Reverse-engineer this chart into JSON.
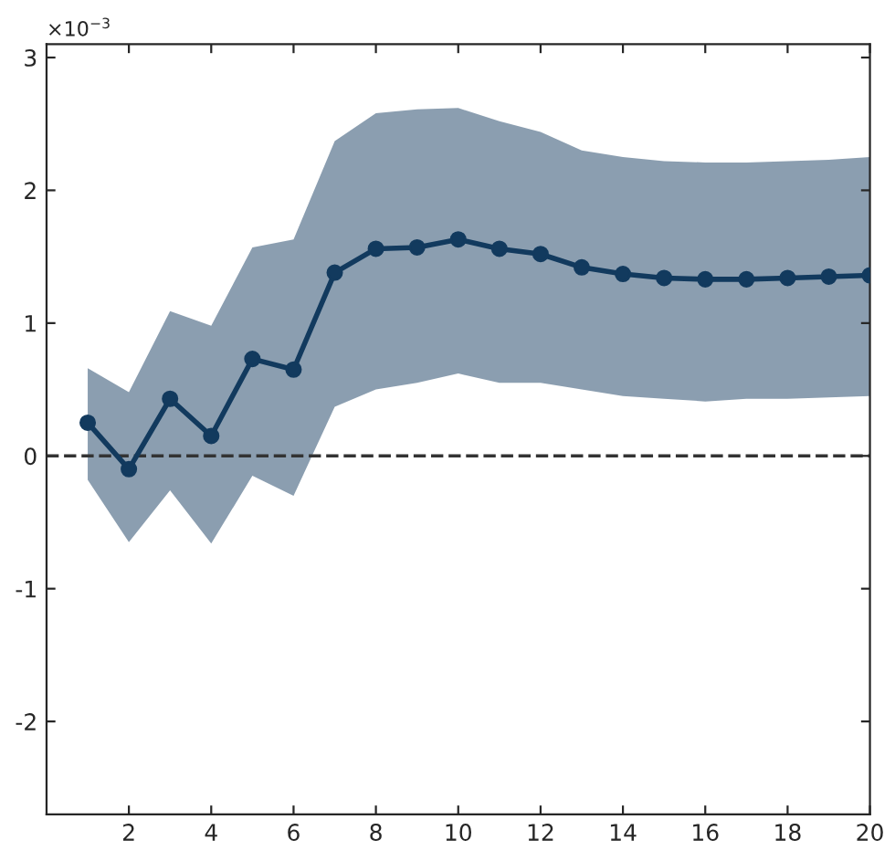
{
  "chart_data": {
    "type": "line",
    "x": [
      1,
      2,
      3,
      4,
      5,
      6,
      7,
      8,
      9,
      10,
      11,
      12,
      13,
      14,
      15,
      16,
      17,
      18,
      19,
      20
    ],
    "series": [
      {
        "color": "#123a5e",
        "values": [
          0.25,
          -0.1,
          0.43,
          0.15,
          0.73,
          0.65,
          1.38,
          1.56,
          1.57,
          1.63,
          1.56,
          1.52,
          1.42,
          1.37,
          1.34,
          1.33,
          1.33,
          1.34,
          1.35,
          1.36
        ],
        "lower": [
          -0.18,
          -0.65,
          -0.26,
          -0.66,
          -0.15,
          -0.3,
          0.37,
          0.5,
          0.55,
          0.62,
          0.55,
          0.55,
          0.5,
          0.45,
          0.43,
          0.41,
          0.43,
          0.43,
          0.44,
          0.45
        ],
        "upper": [
          0.66,
          0.48,
          1.09,
          0.98,
          1.57,
          1.63,
          2.37,
          2.58,
          2.61,
          2.62,
          2.52,
          2.44,
          2.3,
          2.25,
          2.22,
          2.21,
          2.21,
          2.22,
          2.23,
          2.25
        ]
      }
    ],
    "marker": "circle",
    "line_style": "solid",
    "legend": false,
    "xlim": [
      0,
      20
    ],
    "xticks": [
      2,
      4,
      6,
      8,
      10,
      12,
      14,
      16,
      18,
      20
    ],
    "ylim": [
      -2.7,
      3.1
    ],
    "yticks": [
      -2,
      -1,
      0,
      1,
      2,
      3
    ],
    "ref_lines": [
      {
        "axis": "y",
        "value": 0,
        "label": null,
        "color": "#333333",
        "line_style": "dashed"
      }
    ],
    "annotations": [
      "×10$^{−3}$"
    ]
  }
}
